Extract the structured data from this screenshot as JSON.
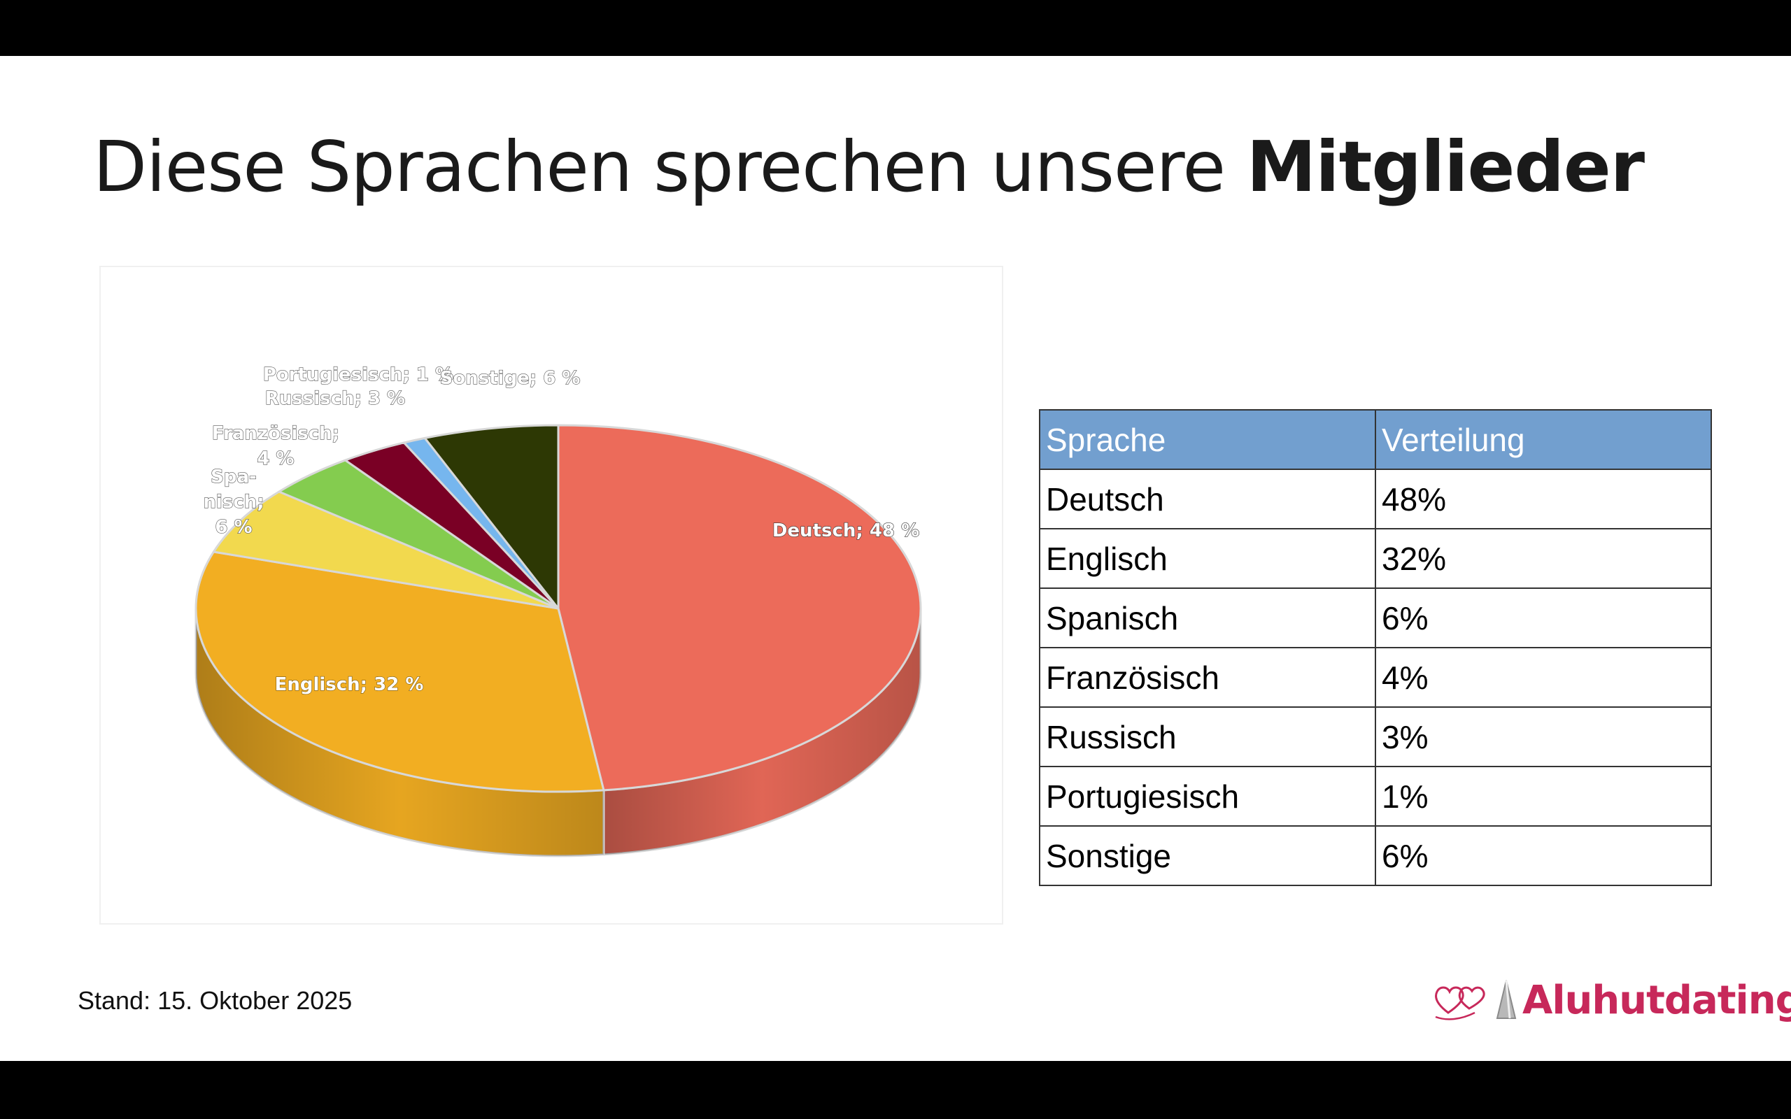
{
  "slide": {
    "title_regular": "Diese Sprachen sprechen unsere ",
    "title_bold": "Mitglieder",
    "footer_note": "Stand: 15. Oktober 2025",
    "brand_name": "Aluhutdating",
    "brand_color": "#c7285a",
    "brand_icon": "hearts-icon"
  },
  "table": {
    "headers": [
      "Sprache",
      "Verteilung"
    ],
    "rows": [
      [
        "Deutsch",
        "48%"
      ],
      [
        "Englisch",
        "32%"
      ],
      [
        "Spanisch",
        "6%"
      ],
      [
        "Französisch",
        "4%"
      ],
      [
        "Russisch",
        "3%"
      ],
      [
        "Portugiesisch",
        "1%"
      ],
      [
        "Sonstige",
        "6%"
      ]
    ],
    "header_color": "#729fcf"
  },
  "chart_data": {
    "type": "pie",
    "style": "3d",
    "categories": [
      "Deutsch",
      "Englisch",
      "Spanisch",
      "Französisch",
      "Russisch",
      "Portugiesisch",
      "Sonstige"
    ],
    "values": [
      48,
      32,
      6,
      4,
      3,
      1,
      6
    ],
    "unit": "%",
    "data_labels": [
      "Deutsch; 48 %",
      "Englisch; 32 %",
      "Spa-|nisch;|6 %",
      "Französisch;|4 %",
      "Russisch; 3 %",
      "Portugiesisch; 1 %",
      "Sonstige; 6 %"
    ],
    "colors": [
      "#ec6b5a",
      "#f2ae22",
      "#f2d94e",
      "#84cc4f",
      "#7a0025",
      "#76b6ee",
      "#2d3804"
    ],
    "title": "",
    "legend": "none"
  }
}
